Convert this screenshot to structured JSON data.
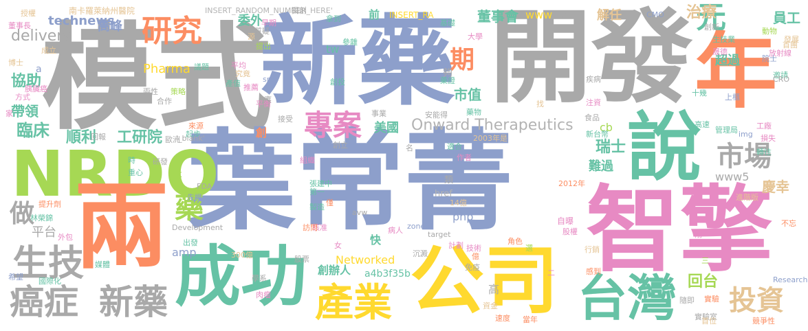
{
  "palette": {
    "gray": "#a9a9a9",
    "blue": "#8d9fcb",
    "orange": "#fc8d62",
    "green": "#66c2a5",
    "lime": "#a6d854",
    "pink": "#e78ac3",
    "yellow": "#ffd92f",
    "tan": "#e5c494",
    "lightgray": "#b3b3b3"
  },
  "words": [
    {
      "text": "模式",
      "color": "gray"
    },
    {
      "text": "新藥",
      "color": "blue"
    },
    {
      "text": "開發",
      "color": "gray"
    },
    {
      "text": "年",
      "color": "orange"
    },
    {
      "text": "說",
      "color": "green"
    },
    {
      "text": "葉常菁",
      "color": "blue"
    },
    {
      "text": "NRDO",
      "color": "lime"
    },
    {
      "text": "兩",
      "color": "orange"
    },
    {
      "text": "智擎",
      "color": "pink"
    },
    {
      "text": "成功",
      "color": "green"
    },
    {
      "text": "公司",
      "color": "yellow"
    },
    {
      "text": "產業",
      "color": "yellow"
    },
    {
      "text": "台灣",
      "color": "green"
    },
    {
      "text": "投資",
      "color": "tan"
    },
    {
      "text": "癌症",
      "color": "gray"
    },
    {
      "text": "新藥",
      "color": "gray"
    },
    {
      "text": "生技",
      "color": "gray"
    },
    {
      "text": "研究",
      "color": "orange"
    },
    {
      "text": "專案",
      "color": "pink"
    },
    {
      "text": "市場",
      "color": "gray"
    },
    {
      "text": "元",
      "color": "green"
    },
    {
      "text": "期",
      "color": "orange"
    },
    {
      "text": "做",
      "color": "gray"
    },
    {
      "text": "藥",
      "color": "lime"
    },
    {
      "text": "Onward Therapeutics",
      "color": "lightgray"
    },
    {
      "text": "technews",
      "color": "blue"
    },
    {
      "text": "delivery",
      "color": "gray"
    },
    {
      "text": "臨床",
      "color": "green"
    },
    {
      "text": "順利",
      "color": "green"
    },
    {
      "text": "工研院",
      "color": "green"
    },
    {
      "text": "協助",
      "color": "green"
    },
    {
      "text": "帶領",
      "color": "green"
    },
    {
      "text": "美國",
      "color": "green"
    },
    {
      "text": "回台",
      "color": "lime"
    },
    {
      "text": "董事會",
      "color": "green"
    },
    {
      "text": "市值",
      "color": "green"
    },
    {
      "text": "高峰",
      "color": "blue"
    },
    {
      "text": "委外",
      "color": "green"
    },
    {
      "text": "員工",
      "color": "green"
    },
    {
      "text": "治療",
      "color": "tan"
    },
    {
      "text": "超過",
      "color": "green"
    },
    {
      "text": "瑞士",
      "color": "green"
    },
    {
      "text": "難過",
      "color": "green"
    },
    {
      "text": "慶幸",
      "color": "tan"
    },
    {
      "text": "平台",
      "color": "gray"
    },
    {
      "text": "Pharma",
      "color": "yellow"
    },
    {
      "text": "Networked",
      "color": "yellow"
    },
    {
      "text": "a4b3f35b",
      "color": "green"
    },
    {
      "text": "創辦人",
      "color": "green"
    },
    {
      "text": "www5",
      "color": "gray"
    },
    {
      "text": "www",
      "color": "yellow"
    },
    {
      "text": "tw",
      "color": "green"
    },
    {
      "text": "php",
      "color": "blue"
    },
    {
      "text": "amp",
      "color": "blue"
    },
    {
      "text": "cb",
      "color": "lime"
    },
    {
      "text": "快",
      "color": "green"
    },
    {
      "text": "解任",
      "color": "tan"
    },
    {
      "text": "前",
      "color": "green"
    },
    {
      "text": "INSERT_RANDOM_NUMBER_HERE'",
      "color": "lightgray"
    },
    {
      "text": "INSERT_RA",
      "color": "yellow"
    },
    {
      "text": "南卡羅萊納州醫院",
      "color": "tan"
    },
    {
      "text": "授權",
      "color": "tan"
    },
    {
      "text": "董事長",
      "color": "pink"
    },
    {
      "text": "成立",
      "color": "tan"
    },
    {
      "text": "博士",
      "color": "tan"
    },
    {
      "text": "方式",
      "color": "pink"
    },
    {
      "text": "家",
      "color": "pink"
    },
    {
      "text": "胰臟癌",
      "color": "pink"
    },
    {
      "text": "基礎",
      "color": "green"
    },
    {
      "text": "早期",
      "color": "pink"
    },
    {
      "text": "獨創",
      "color": "gray"
    },
    {
      "text": "拿到",
      "color": "green"
    },
    {
      "text": "源",
      "color": "tan"
    },
    {
      "text": "質疑",
      "color": "gray"
    },
    {
      "text": "提出",
      "color": "lime"
    },
    {
      "text": "參雜",
      "color": "green"
    },
    {
      "text": "大學",
      "color": "pink"
    },
    {
      "text": "發展",
      "color": "tan"
    },
    {
      "text": "創新",
      "color": "gray"
    },
    {
      "text": "生技業",
      "color": "green"
    },
    {
      "text": "動物",
      "color": "lime"
    },
    {
      "text": "CMO",
      "color": "blue"
    },
    {
      "text": "首團",
      "color": "tan"
    },
    {
      "text": "放射線",
      "color": "pink"
    },
    {
      "text": "晟德",
      "color": "pink"
    },
    {
      "text": "院士",
      "color": "blue"
    },
    {
      "text": "邀請",
      "color": "green"
    },
    {
      "text": "CRO",
      "color": "gray"
    },
    {
      "text": "上櫃",
      "color": "blue"
    },
    {
      "text": "十幾",
      "color": "green"
    },
    {
      "text": "注資",
      "color": "pink"
    },
    {
      "text": "疾病",
      "color": "gray"
    },
    {
      "text": "找",
      "color": "tan"
    },
    {
      "text": "食品",
      "color": "gray"
    },
    {
      "text": "事業",
      "color": "gray"
    },
    {
      "text": "藥物",
      "color": "green"
    },
    {
      "text": "安能得",
      "color": "gray"
    },
    {
      "text": "高速",
      "color": "green"
    },
    {
      "text": "管理局",
      "color": "green"
    },
    {
      "text": "工廠",
      "color": "pink"
    },
    {
      "text": "損失",
      "color": "pink"
    },
    {
      "text": "img",
      "color": "blue"
    },
    {
      "text": "轉往",
      "color": "green"
    },
    {
      "text": "新台幣",
      "color": "green"
    },
    {
      "text": "2003年是",
      "color": "tan"
    },
    {
      "text": "適合",
      "color": "green"
    },
    {
      "text": "作者",
      "color": "pink"
    },
    {
      "text": "類",
      "color": "gray"
    },
    {
      "text": "2012年",
      "color": "orange"
    },
    {
      "text": "進階版",
      "color": "tan"
    },
    {
      "text": "研發",
      "color": "gray"
    },
    {
      "text": "時",
      "color": "green"
    },
    {
      "text": "重心",
      "color": "green"
    },
    {
      "text": "歐洲",
      "color": "gray"
    },
    {
      "text": "來源",
      "color": "orange"
    },
    {
      "text": "起步",
      "color": "green"
    },
    {
      "text": "'_blank'",
      "color": "gray"
    },
    {
      "text": "ck",
      "color": "lime"
    },
    {
      "text": "回報",
      "color": "gray"
    },
    {
      "text": "提升劑",
      "color": "orange"
    },
    {
      "text": "先機",
      "color": "blue"
    },
    {
      "text": "第一",
      "color": "green"
    },
    {
      "text": "組織",
      "color": "pink"
    },
    {
      "text": "張建中",
      "color": "green"
    },
    {
      "text": "製造",
      "color": "green"
    },
    {
      "text": "僅",
      "color": "orange"
    },
    {
      "text": "核准",
      "color": "pink"
    },
    {
      "text": "訪問",
      "color": "orange"
    },
    {
      "text": "href",
      "color": "lightgray"
    },
    {
      "text": "14億",
      "color": "tan"
    },
    {
      "text": "avw",
      "color": "gray"
    },
    {
      "text": "FDA",
      "color": "gray"
    },
    {
      "text": "Development",
      "color": "gray"
    },
    {
      "text": "林榮錦",
      "color": "green"
    },
    {
      "text": "外包",
      "color": "pink"
    },
    {
      "text": "出發",
      "color": "green"
    },
    {
      "text": "300億",
      "color": "tan"
    },
    {
      "text": "媒體",
      "color": "green"
    },
    {
      "text": "國際化",
      "color": "green"
    },
    {
      "text": "希望",
      "color": "blue"
    },
    {
      "text": "學系",
      "color": "gray"
    },
    {
      "text": "股票",
      "color": "gray"
    },
    {
      "text": "肉瘤",
      "color": "pink"
    },
    {
      "text": "沉澱",
      "color": "gray"
    },
    {
      "text": "病人",
      "color": "pink"
    },
    {
      "text": "zoneid",
      "color": "blue"
    },
    {
      "text": "target",
      "color": "gray"
    },
    {
      "text": "計劃",
      "color": "pink"
    },
    {
      "text": "技術",
      "color": "pink"
    },
    {
      "text": "免疫",
      "color": "gray"
    },
    {
      "text": "億",
      "color": "orange"
    },
    {
      "text": "女",
      "color": "pink"
    },
    {
      "text": "角色",
      "color": "orange"
    },
    {
      "text": "選",
      "color": "lime"
    },
    {
      "text": "自曝",
      "color": "pink"
    },
    {
      "text": "股權",
      "color": "pink"
    },
    {
      "text": "行銷",
      "color": "tan"
    },
    {
      "text": "感到",
      "color": "orange"
    },
    {
      "text": "二",
      "color": "pink"
    },
    {
      "text": "Research",
      "color": "blue"
    },
    {
      "text": "三",
      "color": "lime"
    },
    {
      "text": "不忘",
      "color": "orange"
    },
    {
      "text": "剛",
      "color": "pink"
    },
    {
      "text": "隨即",
      "color": "gray"
    },
    {
      "text": "實驗",
      "color": "orange"
    },
    {
      "text": "實驗室",
      "color": "gray"
    },
    {
      "text": "首位",
      "color": "tan"
    },
    {
      "text": "競爭性",
      "color": "orange"
    },
    {
      "text": "當年",
      "color": "orange"
    },
    {
      "text": "速度",
      "color": "orange"
    },
    {
      "text": "資金",
      "color": "tan"
    },
    {
      "text": "高",
      "color": "gray"
    },
    {
      "text": "應",
      "color": "gray"
    },
    {
      "text": "平衡",
      "color": "pink"
    },
    {
      "text": "接受",
      "color": "gray"
    },
    {
      "text": "創",
      "color": "orange"
    },
    {
      "text": "創立",
      "color": "gray"
    },
    {
      "text": "名",
      "color": "gray"
    },
    {
      "text": "合作",
      "color": "gray"
    },
    {
      "text": "兩性",
      "color": "gray"
    },
    {
      "text": "策略",
      "color": "lime"
    },
    {
      "text": "src",
      "color": "blue"
    },
    {
      "text": "推薦",
      "color": "pink"
    },
    {
      "text": "產值",
      "color": "green"
    },
    {
      "text": "究竟",
      "color": "tan"
    },
    {
      "text": "平均",
      "color": "pink"
    },
    {
      "text": "議題",
      "color": "green"
    },
    {
      "text": "創投",
      "color": "green"
    },
    {
      "text": "藥證",
      "color": "green"
    },
    {
      "text": "夠",
      "color": "gray"
    },
    {
      "text": "n",
      "color": "gray"
    },
    {
      "text": "a",
      "color": "blue"
    }
  ]
}
